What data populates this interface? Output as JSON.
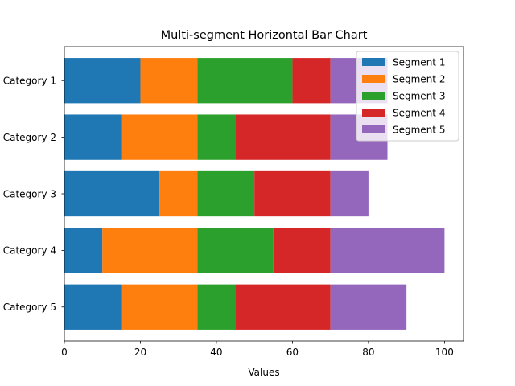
{
  "chart_data": {
    "type": "bar",
    "orientation": "horizontal",
    "stacked": true,
    "title": "Multi-segment Horizontal Bar Chart",
    "xlabel": "Values",
    "ylabel": "",
    "xlim": [
      0,
      105
    ],
    "xticks": [
      0,
      20,
      40,
      60,
      80,
      100
    ],
    "categories": [
      "Category 1",
      "Category 2",
      "Category 3",
      "Category 4",
      "Category 5"
    ],
    "series": [
      {
        "name": "Segment 1",
        "color": "#1f77b4",
        "values": [
          20,
          15,
          25,
          10,
          15
        ]
      },
      {
        "name": "Segment 2",
        "color": "#ff7f0e",
        "values": [
          15,
          20,
          10,
          25,
          20
        ]
      },
      {
        "name": "Segment 3",
        "color": "#2ca02c",
        "values": [
          25,
          10,
          15,
          20,
          10
        ]
      },
      {
        "name": "Segment 4",
        "color": "#d62728",
        "values": [
          10,
          25,
          20,
          15,
          25
        ]
      },
      {
        "name": "Segment 5",
        "color": "#9467bd",
        "values": [
          15,
          15,
          10,
          30,
          20
        ]
      }
    ],
    "grid": false,
    "legend_position": "top-right"
  }
}
